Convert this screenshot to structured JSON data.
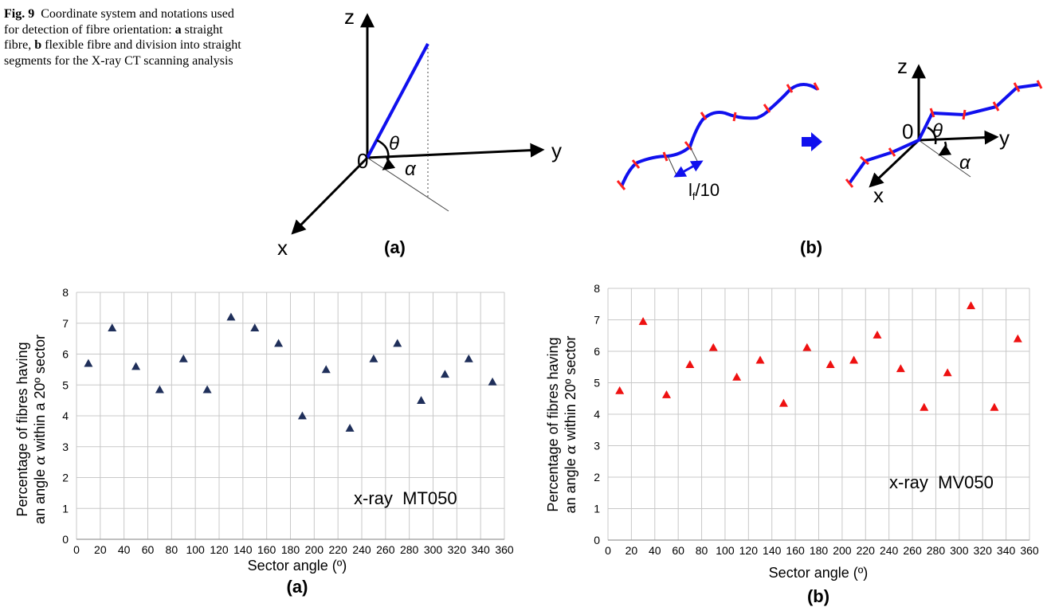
{
  "caption": {
    "fig_label": "Fig. 9",
    "text_1": "Coordinate system and notations used for detection of fibre orientation:",
    "a_label": "a",
    "a_text": "straight fibre,",
    "b_label": "b",
    "b_text": "flexible fibre and division into straight segments for the X-ray CT scanning analysis"
  },
  "diagram_a": {
    "axis_z": "z",
    "axis_y": "y",
    "axis_x": "x",
    "origin": "0",
    "theta": "θ",
    "alpha": "α",
    "panel": "(a)",
    "colors": {
      "fibre": "#1010ee",
      "axes": "#000000",
      "guide": "#555555"
    }
  },
  "diagram_b": {
    "segment_label": "l",
    "segment_sub": "f",
    "segment_suffix": "/10",
    "axis_z": "z",
    "axis_y": "y",
    "axis_x": "x",
    "origin": "0",
    "theta": "θ",
    "alpha": "α",
    "panel": "(b)",
    "colors": {
      "fibre": "#1010ee",
      "marker": "#ff2020",
      "arrow": "#1010ee"
    }
  },
  "chart_data": [
    {
      "type": "scatter",
      "panel": "(a)",
      "annotation": "x-ray  MT050",
      "ylabel_line1": "Percentage of fibres having",
      "ylabel_line2_pre": "an angle ",
      "ylabel_symbol": "α",
      "ylabel_line2_post": " within a 20º sector",
      "xlabel": "Sector angle (º)",
      "x_ticks": [
        0,
        20,
        40,
        60,
        80,
        100,
        120,
        140,
        160,
        180,
        200,
        220,
        240,
        260,
        280,
        300,
        320,
        340,
        360
      ],
      "y_ticks": [
        0,
        1,
        2,
        3,
        4,
        5,
        6,
        7,
        8
      ],
      "xlim": [
        0,
        360
      ],
      "ylim": [
        0,
        8
      ],
      "grid": true,
      "marker": "triangle",
      "color": "#1f2f5a",
      "x": [
        10,
        30,
        50,
        70,
        90,
        110,
        130,
        150,
        170,
        190,
        210,
        230,
        250,
        270,
        290,
        310,
        330,
        350
      ],
      "y": [
        5.7,
        6.85,
        5.6,
        4.85,
        5.85,
        4.85,
        7.2,
        6.85,
        6.35,
        4.0,
        5.5,
        3.6,
        5.85,
        6.35,
        4.5,
        5.35,
        5.85,
        5.1
      ]
    },
    {
      "type": "scatter",
      "panel": "(b)",
      "annotation": "x-ray  MV050",
      "ylabel_line1": "Percentage of fibres having",
      "ylabel_line2_pre": "an angle ",
      "ylabel_symbol": "α",
      "ylabel_line2_post": " within 20º sector",
      "xlabel": "Sector angle (º)",
      "x_ticks": [
        0,
        20,
        40,
        60,
        80,
        100,
        120,
        140,
        160,
        180,
        200,
        220,
        240,
        260,
        280,
        300,
        320,
        340,
        360
      ],
      "y_ticks": [
        0,
        1,
        2,
        3,
        4,
        5,
        6,
        7,
        8
      ],
      "xlim": [
        0,
        360
      ],
      "ylim": [
        0,
        8
      ],
      "grid": true,
      "marker": "triangle",
      "color": "#ee1111",
      "x": [
        10,
        30,
        50,
        70,
        90,
        110,
        130,
        150,
        170,
        190,
        210,
        230,
        250,
        270,
        290,
        310,
        330,
        350
      ],
      "y": [
        4.75,
        6.95,
        4.62,
        5.58,
        6.12,
        5.18,
        5.72,
        4.35,
        6.12,
        5.58,
        5.72,
        6.52,
        5.45,
        4.22,
        5.32,
        7.45,
        4.22,
        6.4
      ]
    }
  ]
}
